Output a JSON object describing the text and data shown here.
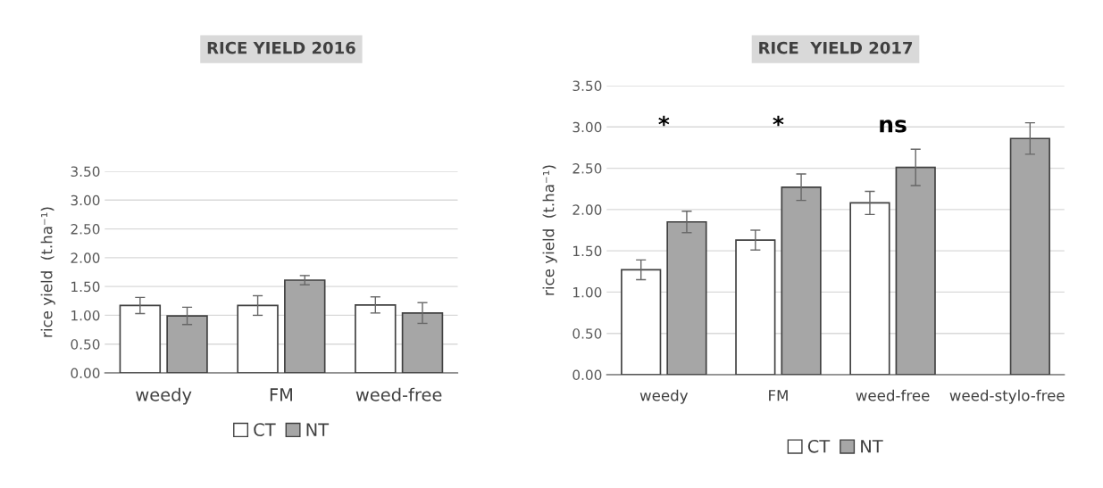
{
  "chart_data": [
    {
      "type": "bar",
      "title": "RICE YIELD 2016",
      "ylabel": "rice yield  (t.ha⁻¹)",
      "categories": [
        "weedy",
        "FM",
        "weed-free"
      ],
      "series": [
        {
          "name": "CT",
          "color": "#ffffff",
          "values": [
            1.17,
            1.17,
            1.18
          ],
          "errors": [
            0.14,
            0.17,
            0.14
          ]
        },
        {
          "name": "NT",
          "color": "#a6a6a6",
          "values": [
            0.99,
            1.61,
            1.04
          ],
          "errors": [
            0.15,
            0.08,
            0.18
          ]
        }
      ],
      "ylim": [
        0,
        3.5
      ],
      "yticks": [
        {
          "value": 0,
          "label": "0.00"
        },
        {
          "value": 0.5,
          "label": "0.50"
        },
        {
          "value": 1,
          "label": "1.00"
        },
        {
          "value": 1.5,
          "label": "1.50"
        },
        {
          "value": 2,
          "label": "2.00"
        },
        {
          "value": 2.5,
          "label": "2.50"
        },
        {
          "value": 3,
          "label": "3.00"
        },
        {
          "value": 3.5,
          "label": "3.50"
        }
      ],
      "grid": "y",
      "legend": "bottom"
    },
    {
      "type": "bar",
      "title": "RICE  YIELD 2017",
      "ylabel": "rice yield  (t.ha⁻¹)",
      "categories": [
        "weedy",
        "FM",
        "weed-free",
        "weed-stylo-free"
      ],
      "series": [
        {
          "name": "CT",
          "color": "#ffffff",
          "values": [
            1.27,
            1.63,
            2.08,
            null
          ],
          "errors": [
            0.12,
            0.12,
            0.14,
            null
          ]
        },
        {
          "name": "NT",
          "color": "#a6a6a6",
          "values": [
            1.85,
            2.27,
            2.51,
            2.86
          ],
          "errors": [
            0.13,
            0.16,
            0.22,
            0.19
          ]
        }
      ],
      "ylim": [
        0,
        3.5
      ],
      "yticks": [
        {
          "value": 0,
          "label": "0.00"
        },
        {
          "value": 0.5,
          "label": "0.50"
        },
        {
          "value": 1,
          "label": "1.00"
        },
        {
          "value": 1.5,
          "label": "1.50"
        },
        {
          "value": 2,
          "label": "2.00"
        },
        {
          "value": 2.5,
          "label": "2.50"
        },
        {
          "value": 3,
          "label": "3.00"
        },
        {
          "value": 3.5,
          "label": "3.50"
        }
      ],
      "annotations": [
        "*",
        "*",
        "ns"
      ],
      "grid": "y",
      "legend": "bottom"
    }
  ]
}
